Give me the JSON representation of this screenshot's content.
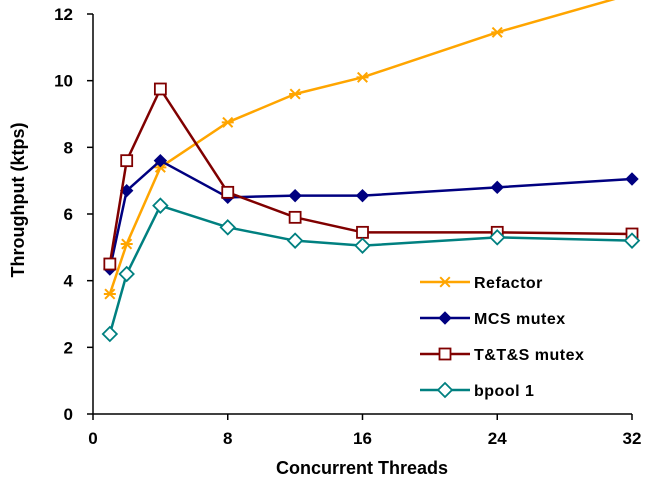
{
  "chart_data": {
    "type": "line",
    "xlabel": "Concurrent Threads",
    "ylabel": "Throughput (ktps)",
    "xlim": [
      0,
      32
    ],
    "ylim": [
      0,
      12
    ],
    "x_ticks": [
      0,
      8,
      16,
      24,
      32
    ],
    "y_ticks": [
      0,
      2,
      4,
      6,
      8,
      10,
      12
    ],
    "grid": false,
    "legend_position": "bottom-right",
    "series": [
      {
        "name": "Refactor",
        "color": "#FFA500",
        "marker": "asterisk",
        "x": [
          1,
          2,
          4,
          8,
          12,
          16,
          24,
          32
        ],
        "y": [
          3.6,
          5.1,
          7.4,
          8.75,
          9.6,
          10.1,
          11.45,
          12.6
        ]
      },
      {
        "name": "MCS mutex",
        "color": "#000080",
        "marker": "filled-diamond",
        "x": [
          1,
          2,
          4,
          8,
          12,
          16,
          24,
          32
        ],
        "y": [
          4.35,
          6.7,
          7.6,
          6.5,
          6.55,
          6.55,
          6.8,
          7.05
        ]
      },
      {
        "name": "T&T&S mutex",
        "color": "#800000",
        "marker": "hollow-square",
        "x": [
          1,
          2,
          4,
          8,
          12,
          16,
          24,
          32
        ],
        "y": [
          4.5,
          7.6,
          9.75,
          6.65,
          5.9,
          5.45,
          5.45,
          5.4
        ]
      },
      {
        "name": "bpool 1",
        "color": "#008080",
        "marker": "hollow-diamond",
        "x": [
          1,
          2,
          4,
          8,
          12,
          16,
          24,
          32
        ],
        "y": [
          2.4,
          4.2,
          6.25,
          5.6,
          5.2,
          5.05,
          5.3,
          5.2
        ]
      }
    ]
  }
}
